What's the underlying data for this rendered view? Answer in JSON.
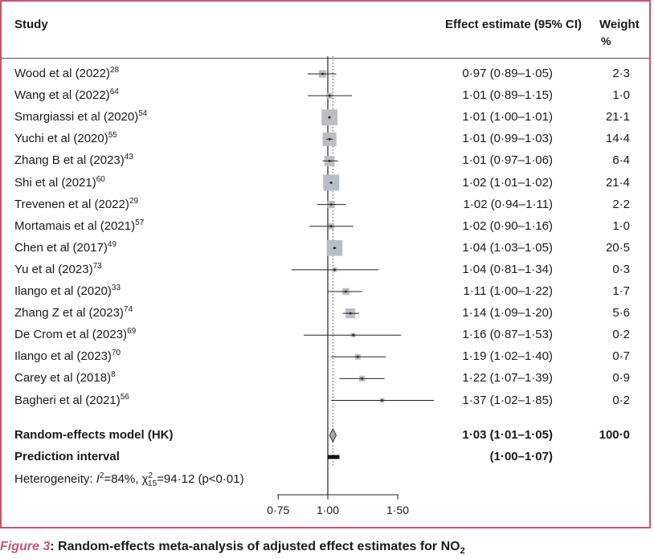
{
  "header": {
    "study": "Study",
    "effect": "Effect estimate (95% CI)",
    "weight": "Weight",
    "weight_unit": "%"
  },
  "chart_data": {
    "type": "forest",
    "xlim": [
      0.75,
      1.5
    ],
    "xticks": [
      0.75,
      1.0,
      1.5
    ],
    "xtick_labels": [
      "0·75",
      "1·00",
      "1·50"
    ],
    "xscale": "log",
    "reference_line": 1.0,
    "summary_dotted_line": 1.03,
    "studies": [
      {
        "study": "Wood et al (2022)",
        "ref": "28",
        "est": 0.97,
        "lo": 0.89,
        "hi": 1.05,
        "label": "0·97 (0·89–1·05)",
        "weight": 2.3,
        "weight_label": "2·3"
      },
      {
        "study": "Wang et al (2022)",
        "ref": "64",
        "est": 1.01,
        "lo": 0.89,
        "hi": 1.15,
        "label": "1·01 (0·89–1·15)",
        "weight": 1.0,
        "weight_label": "1·0"
      },
      {
        "study": "Smargiassi et al (2020)",
        "ref": "54",
        "est": 1.01,
        "lo": 1.0,
        "hi": 1.01,
        "label": "1·01 (1·00–1·01)",
        "weight": 21.1,
        "weight_label": "21·1"
      },
      {
        "study": "Yuchi et al (2020)",
        "ref": "55",
        "est": 1.01,
        "lo": 0.99,
        "hi": 1.03,
        "label": "1·01 (0·99–1·03)",
        "weight": 14.4,
        "weight_label": "14·4"
      },
      {
        "study": "Zhang B et al (2023)",
        "ref": "43",
        "est": 1.01,
        "lo": 0.97,
        "hi": 1.06,
        "label": "1·01 (0·97–1·06)",
        "weight": 6.4,
        "weight_label": "6·4"
      },
      {
        "study": "Shi et al (2021)",
        "ref": "60",
        "est": 1.02,
        "lo": 1.01,
        "hi": 1.02,
        "label": "1·02 (1·01–1·02)",
        "weight": 21.4,
        "weight_label": "21·4"
      },
      {
        "study": "Trevenen et al (2022)",
        "ref": "29",
        "est": 1.02,
        "lo": 0.94,
        "hi": 1.11,
        "label": "1·02 (0·94–1·11)",
        "weight": 2.2,
        "weight_label": "2·2"
      },
      {
        "study": "Mortamais et al (2021)",
        "ref": "57",
        "est": 1.02,
        "lo": 0.9,
        "hi": 1.16,
        "label": "1·02 (0·90–1·16)",
        "weight": 1.0,
        "weight_label": "1·0"
      },
      {
        "study": "Chen et al (2017)",
        "ref": "49",
        "est": 1.04,
        "lo": 1.03,
        "hi": 1.05,
        "label": "1·04 (1·03–1·05)",
        "weight": 20.5,
        "weight_label": "20·5"
      },
      {
        "study": "Yu et al (2023)",
        "ref": "73",
        "est": 1.04,
        "lo": 0.81,
        "hi": 1.34,
        "label": "1·04 (0·81–1·34)",
        "weight": 0.3,
        "weight_label": "0·3"
      },
      {
        "study": "Ilango et al (2020)",
        "ref": "33",
        "est": 1.11,
        "lo": 1.0,
        "hi": 1.22,
        "label": "1·11 (1·00–1·22)",
        "weight": 1.7,
        "weight_label": "1·7"
      },
      {
        "study": "Zhang Z et al  (2023)",
        "ref": "74",
        "est": 1.14,
        "lo": 1.09,
        "hi": 1.2,
        "label": "1·14 (1·09–1·20)",
        "weight": 5.6,
        "weight_label": "5·6"
      },
      {
        "study": "De Crom et al (2023)",
        "ref": "69",
        "est": 1.16,
        "lo": 0.87,
        "hi": 1.53,
        "label": "1·16 (0·87–1·53)",
        "weight": 0.2,
        "weight_label": "0·2"
      },
      {
        "study": "Ilango et al (2023)",
        "ref": "70",
        "est": 1.19,
        "lo": 1.02,
        "hi": 1.4,
        "label": "1·19 (1·02–1·40)",
        "weight": 0.7,
        "weight_label": "0·7"
      },
      {
        "study": "Carey et al (2018)",
        "ref": "8",
        "est": 1.22,
        "lo": 1.07,
        "hi": 1.39,
        "label": "1·22 (1·07–1·39)",
        "weight": 0.9,
        "weight_label": "0·9"
      },
      {
        "study": "Bagheri et al (2021)",
        "ref": "56",
        "est": 1.37,
        "lo": 1.02,
        "hi": 1.85,
        "label": "1·37 (1·02–1·85)",
        "weight": 0.2,
        "weight_label": "0·2"
      }
    ],
    "summary": {
      "label": "Random-effects model (HK)",
      "est": 1.03,
      "lo": 1.01,
      "hi": 1.05,
      "ci_label": "1·03 (1·01–1·05)",
      "weight_label": "100·0"
    },
    "prediction": {
      "label": "Prediction interval",
      "lo": 1.0,
      "hi": 1.07,
      "ci_label": "(1·00–1·07)"
    }
  },
  "heterogeneity": {
    "prefix": "Heterogeneity: ",
    "i2_label": "I",
    "i2_value": "=84%, χ",
    "chi_sub": "15",
    "chi_sup": "2",
    "chi_value": "=94·12 (p<0·01)"
  },
  "caption": {
    "figure": "Figure 3",
    "text": ": Random-effects meta-analysis of adjusted effect estimates for NO",
    "sub": "2"
  },
  "colors": {
    "border": "#c9546f",
    "box": "#b9bec4",
    "diamond": "#a9a9a9"
  }
}
